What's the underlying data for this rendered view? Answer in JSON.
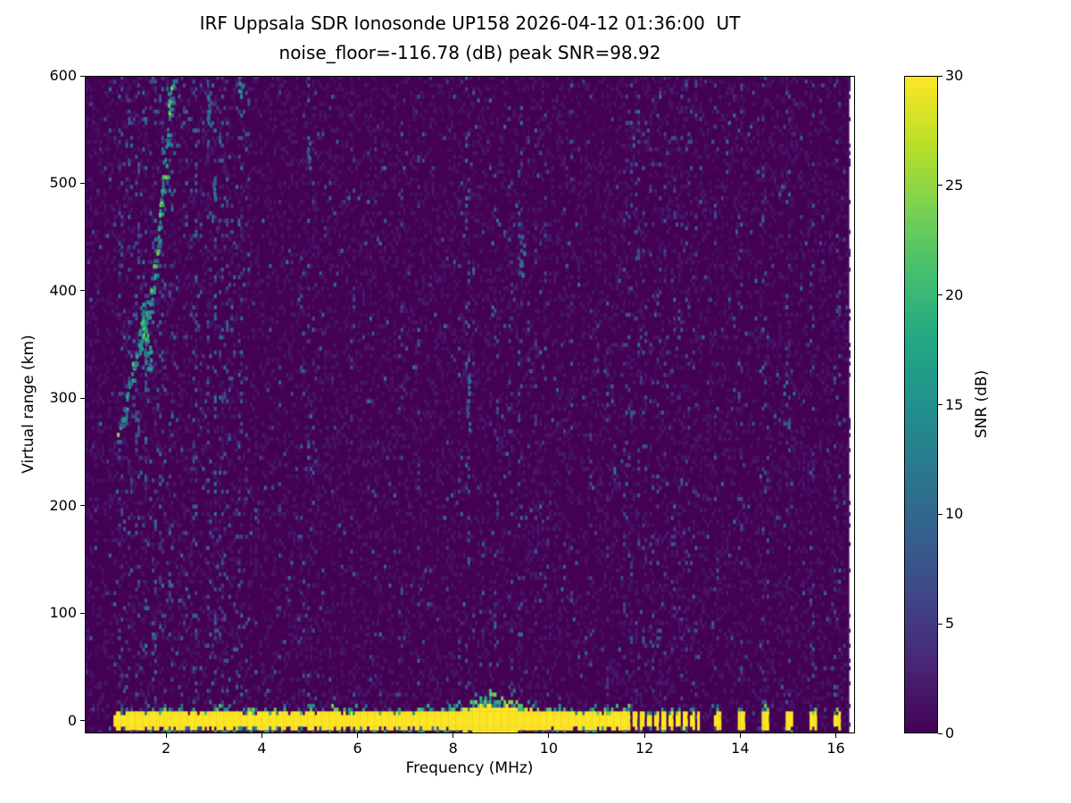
{
  "chart_data": {
    "type": "heatmap",
    "title": "IRF Uppsala SDR Ionosonde UP158 2026-04-12 01:36:00  UT",
    "subtitle": "noise_floor=-116.78 (dB) peak SNR=98.92",
    "station": "UP158",
    "timestamp_ut": "2026-04-12 01:36:00",
    "noise_floor_db": -116.78,
    "peak_snr_db": 98.92,
    "xlabel": "Frequency (MHz)",
    "ylabel": "Virtual range (km)",
    "x_range": [
      0.3,
      16.4
    ],
    "y_range": [
      -12,
      600
    ],
    "x_ticks": [
      2,
      4,
      6,
      8,
      10,
      12,
      14,
      16
    ],
    "y_ticks": [
      0,
      100,
      200,
      300,
      400,
      500,
      600
    ],
    "data_extent_mhz": [
      0.3,
      16.28
    ],
    "colorbar": {
      "label": "SNR (dB)",
      "range": [
        0,
        30
      ],
      "ticks": [
        0,
        5,
        10,
        15,
        20,
        25,
        30
      ],
      "colormap": "viridis",
      "colors": [
        "#440154",
        "#482475",
        "#414487",
        "#355f8d",
        "#2a788e",
        "#21918c",
        "#22a884",
        "#44bf70",
        "#7ad151",
        "#bddf26",
        "#fde725"
      ]
    },
    "ground_band": {
      "start_mhz": 0.92,
      "solid_end_mhz": 11.62,
      "dash_end_mhz": 13.15,
      "dash_period_mhz": 0.15,
      "dash_duty": 0.5,
      "center_km": 0,
      "half_width_km": 7.5,
      "fringe_km": 7,
      "bulge_mhz": 8.8,
      "bulge_sigma_mhz": 0.5,
      "bulge_amp_km": 6,
      "sparse_dash_mhz": [
        13.5,
        13.58,
        14.0,
        14.08,
        14.5,
        14.58,
        15.0,
        15.08,
        15.5,
        15.58,
        16.0,
        16.08
      ]
    },
    "echo_trace": {
      "points_mhz_km": [
        [
          1.02,
          262
        ],
        [
          1.1,
          280
        ],
        [
          1.18,
          300
        ],
        [
          1.28,
          318
        ],
        [
          1.38,
          338
        ],
        [
          1.5,
          355
        ],
        [
          1.6,
          372
        ],
        [
          1.68,
          392
        ],
        [
          1.76,
          415
        ],
        [
          1.84,
          442
        ],
        [
          1.9,
          470
        ],
        [
          1.96,
          500
        ],
        [
          2.0,
          528
        ],
        [
          2.05,
          556
        ],
        [
          2.1,
          582
        ],
        [
          2.15,
          598
        ]
      ],
      "snr_range_db": [
        9,
        26
      ]
    },
    "bright_patches": [
      {
        "mhz": 1.56,
        "km": 362,
        "w_mhz": 0.1,
        "h_km": 28,
        "db": 21
      },
      {
        "mhz": 1.64,
        "km": 336,
        "w_mhz": 0.08,
        "h_km": 20,
        "db": 17
      },
      {
        "mhz": 1.47,
        "km": 350,
        "w_mhz": 0.06,
        "h_km": 16,
        "db": 22
      },
      {
        "mhz": 3.03,
        "km": 492,
        "w_mhz": 0.05,
        "h_km": 22,
        "db": 12
      },
      {
        "mhz": 2.9,
        "km": 560,
        "w_mhz": 0.06,
        "h_km": 30,
        "db": 11
      },
      {
        "mhz": 3.55,
        "km": 590,
        "w_mhz": 0.06,
        "h_km": 12,
        "db": 14
      },
      {
        "mhz": 5.0,
        "km": 528,
        "w_mhz": 0.05,
        "h_km": 14,
        "db": 11
      },
      {
        "mhz": 8.33,
        "km": 300,
        "w_mhz": 0.05,
        "h_km": 40,
        "db": 10
      },
      {
        "mhz": 9.44,
        "km": 432,
        "w_mhz": 0.07,
        "h_km": 24,
        "db": 12
      }
    ],
    "interference_columns": [
      {
        "mhz": 1.05,
        "density": 0.06,
        "max_db": 8
      },
      {
        "mhz": 1.2,
        "density": 0.1,
        "max_db": 12
      },
      {
        "mhz": 1.39,
        "density": 0.09,
        "max_db": 10
      },
      {
        "mhz": 1.57,
        "density": 0.12,
        "max_db": 14
      },
      {
        "mhz": 1.76,
        "density": 0.1,
        "max_db": 12
      },
      {
        "mhz": 1.91,
        "density": 0.09,
        "max_db": 12
      },
      {
        "mhz": 2.09,
        "density": 0.1,
        "max_db": 12
      },
      {
        "mhz": 2.37,
        "density": 0.08,
        "max_db": 10
      },
      {
        "mhz": 2.61,
        "density": 0.08,
        "max_db": 10
      },
      {
        "mhz": 2.87,
        "density": 0.09,
        "max_db": 12
      },
      {
        "mhz": 3.02,
        "density": 0.12,
        "max_db": 13
      },
      {
        "mhz": 3.14,
        "density": 0.1,
        "max_db": 12
      },
      {
        "mhz": 3.25,
        "density": 0.07,
        "max_db": 10
      },
      {
        "mhz": 3.55,
        "density": 0.1,
        "max_db": 12
      },
      {
        "mhz": 3.68,
        "density": 0.06,
        "max_db": 9
      },
      {
        "mhz": 4.37,
        "density": 0.05,
        "max_db": 8
      },
      {
        "mhz": 4.85,
        "density": 0.05,
        "max_db": 9
      },
      {
        "mhz": 4.98,
        "density": 0.11,
        "max_db": 13
      },
      {
        "mhz": 5.11,
        "density": 0.06,
        "max_db": 9
      },
      {
        "mhz": 5.9,
        "density": 0.06,
        "max_db": 9
      },
      {
        "mhz": 6.37,
        "density": 0.05,
        "max_db": 8
      },
      {
        "mhz": 6.9,
        "density": 0.05,
        "max_db": 8
      },
      {
        "mhz": 7.27,
        "density": 0.04,
        "max_db": 8
      },
      {
        "mhz": 7.87,
        "density": 0.05,
        "max_db": 8
      },
      {
        "mhz": 8.16,
        "density": 0.05,
        "max_db": 9
      },
      {
        "mhz": 8.31,
        "density": 0.1,
        "max_db": 12
      },
      {
        "mhz": 8.91,
        "density": 0.06,
        "max_db": 9
      },
      {
        "mhz": 9.2,
        "density": 0.05,
        "max_db": 9
      },
      {
        "mhz": 9.41,
        "density": 0.1,
        "max_db": 12
      },
      {
        "mhz": 9.58,
        "density": 0.07,
        "max_db": 10
      },
      {
        "mhz": 9.73,
        "density": 0.08,
        "max_db": 10
      },
      {
        "mhz": 9.95,
        "density": 0.06,
        "max_db": 9
      },
      {
        "mhz": 10.47,
        "density": 0.05,
        "max_db": 8
      },
      {
        "mhz": 10.88,
        "density": 0.05,
        "max_db": 8
      },
      {
        "mhz": 11.22,
        "density": 0.04,
        "max_db": 8
      },
      {
        "mhz": 11.59,
        "density": 0.05,
        "max_db": 8
      },
      {
        "mhz": 11.7,
        "density": 0.06,
        "max_db": 9
      },
      {
        "mhz": 11.85,
        "density": 0.06,
        "max_db": 9
      },
      {
        "mhz": 12.0,
        "density": 0.06,
        "max_db": 9
      },
      {
        "mhz": 12.15,
        "density": 0.06,
        "max_db": 9
      },
      {
        "mhz": 12.3,
        "density": 0.06,
        "max_db": 9
      },
      {
        "mhz": 12.45,
        "density": 0.06,
        "max_db": 9
      },
      {
        "mhz": 12.6,
        "density": 0.06,
        "max_db": 9
      },
      {
        "mhz": 12.75,
        "density": 0.06,
        "max_db": 9
      },
      {
        "mhz": 12.9,
        "density": 0.06,
        "max_db": 9
      },
      {
        "mhz": 13.05,
        "density": 0.06,
        "max_db": 9
      },
      {
        "mhz": 13.5,
        "density": 0.07,
        "max_db": 10
      },
      {
        "mhz": 14.0,
        "density": 0.07,
        "max_db": 10
      },
      {
        "mhz": 14.5,
        "density": 0.07,
        "max_db": 10
      },
      {
        "mhz": 14.57,
        "density": 0.05,
        "max_db": 9
      },
      {
        "mhz": 15.0,
        "density": 0.07,
        "max_db": 10
      },
      {
        "mhz": 15.5,
        "density": 0.07,
        "max_db": 10
      },
      {
        "mhz": 16.0,
        "density": 0.07,
        "max_db": 10
      },
      {
        "mhz": 16.07,
        "density": 0.05,
        "max_db": 9
      }
    ],
    "noise": {
      "seed": 20260412,
      "mottle_prob": 0.3,
      "mottle_max_db": 2.3,
      "speckle_prob": 0.012,
      "speckle_db": [
        4,
        12
      ],
      "busy_region_mhz": [
        0.98,
        3.75
      ],
      "busy_extra_prob": 0.03,
      "busy_max_db": 11
    },
    "render_hints": {
      "freq_step_mhz": 0.05,
      "range_step_km": 3.5
    }
  },
  "colors": {
    "figure_background": "#ffffff",
    "axis": "#000000",
    "no_data": "#ffffff"
  }
}
